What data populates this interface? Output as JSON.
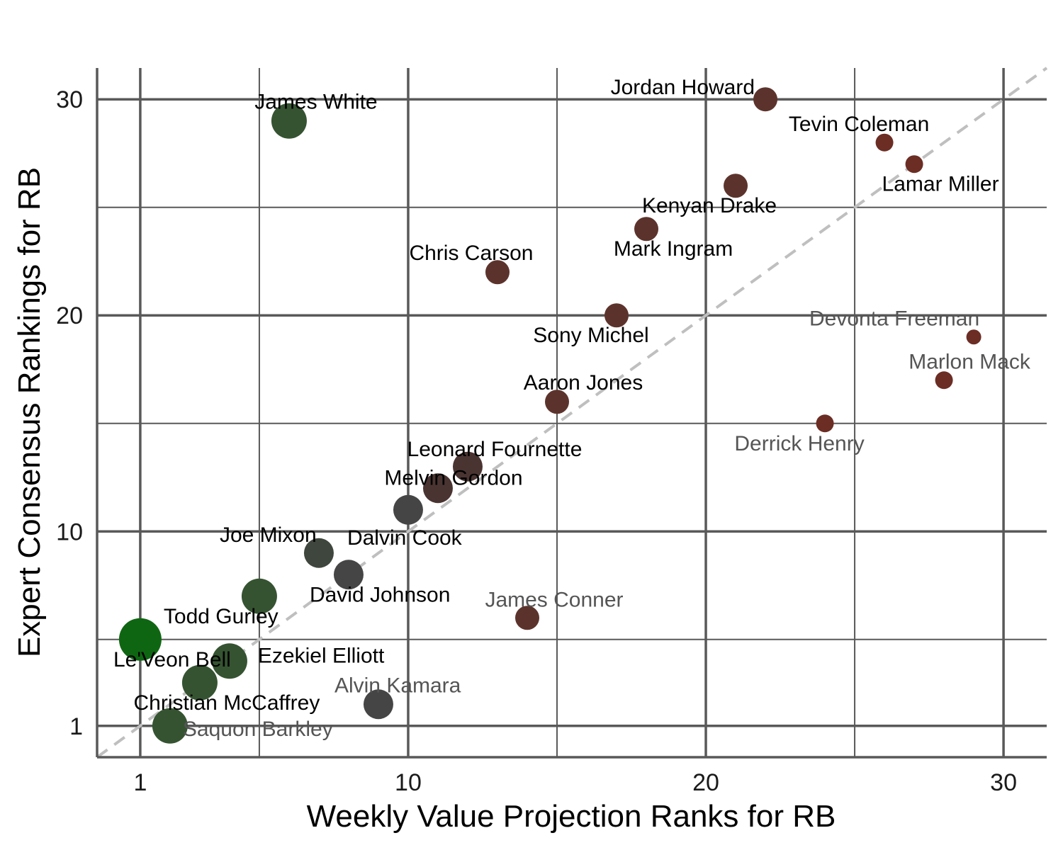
{
  "chart_data": {
    "type": "scatter",
    "title": "",
    "xlabel": "Weekly Value Projection Ranks for RB",
    "ylabel": "Expert Consensus Rankings for RB",
    "xlim": [
      -0.45,
      31.45
    ],
    "ylim": [
      -0.45,
      31.45
    ],
    "x_ticks": [
      1,
      10,
      20,
      30
    ],
    "y_ticks": [
      1,
      10,
      20,
      30
    ],
    "x_minor": [
      5,
      15,
      25
    ],
    "y_minor": [
      5,
      15,
      25
    ],
    "x_tick_labels": [
      "1",
      "10",
      "20",
      "30"
    ],
    "y_tick_labels": [
      "1",
      "10",
      "20",
      "30"
    ],
    "grid": true,
    "reference_line": "y = x (dashed)",
    "legend": "none",
    "colors": {
      "strong_green": "#0f6612",
      "green": "#355331",
      "dark_green_grey": "#3f463d",
      "grey": "#454545",
      "dark_brown": "#4a3431",
      "brown": "#5c332c",
      "red_brown": "#6b2d24",
      "label_dark": "#000000",
      "label_muted": "#555555",
      "gridline": "#595959",
      "refline": "#bfbfbf"
    },
    "points": [
      {
        "label": "Saquon Barkley",
        "x": 2,
        "y": 1,
        "size": "large",
        "color": "#355331",
        "label_muted": true
      },
      {
        "label": "Christian McCaffrey",
        "x": 3,
        "y": 3,
        "size": "large",
        "color": "#355331",
        "label_muted": false
      },
      {
        "label": "Le'Veon Bell",
        "x": 1,
        "y": 5,
        "size": "xlarge",
        "color": "#0f6612",
        "label_muted": false
      },
      {
        "label": "Ezekiel Elliott",
        "x": 4,
        "y": 4,
        "size": "large",
        "color": "#355331",
        "label_muted": false
      },
      {
        "label": "Todd Gurley",
        "x": 5,
        "y": 7,
        "size": "large",
        "color": "#355331",
        "label_muted": false
      },
      {
        "label": "Alvin Kamara",
        "x": 9,
        "y": 2,
        "size": "medium",
        "color": "#454545",
        "label_muted": true
      },
      {
        "label": "Joe Mixon",
        "x": 7,
        "y": 9,
        "size": "medium",
        "color": "#3f463d",
        "label_muted": false
      },
      {
        "label": "David Johnson",
        "x": 8,
        "y": 8,
        "size": "medium",
        "color": "#454545",
        "label_muted": false
      },
      {
        "label": "Dalvin Cook",
        "x": 10,
        "y": 11,
        "size": "medium",
        "color": "#454545",
        "label_muted": false
      },
      {
        "label": "Melvin Gordon",
        "x": 11,
        "y": 12,
        "size": "medium",
        "color": "#4a3431",
        "label_muted": false
      },
      {
        "label": "Leonard Fournette",
        "x": 12,
        "y": 13,
        "size": "medium",
        "color": "#4a3431",
        "label_muted": false
      },
      {
        "label": "James White",
        "x": 6,
        "y": 29,
        "size": "large",
        "color": "#355331",
        "label_muted": false
      },
      {
        "label": "James Conner",
        "x": 14,
        "y": 6,
        "size": "small",
        "color": "#5c332c",
        "label_muted": true
      },
      {
        "label": "Aaron Jones",
        "x": 15,
        "y": 16,
        "size": "small",
        "color": "#5c332c",
        "label_muted": false
      },
      {
        "label": "Chris Carson",
        "x": 13,
        "y": 22,
        "size": "small",
        "color": "#5c332c",
        "label_muted": false
      },
      {
        "label": "Sony Michel",
        "x": 17,
        "y": 20,
        "size": "small",
        "color": "#5c332c",
        "label_muted": false
      },
      {
        "label": "Mark Ingram",
        "x": 18,
        "y": 24,
        "size": "small",
        "color": "#5c332c",
        "label_muted": false
      },
      {
        "label": "Kenyan Drake",
        "x": 21,
        "y": 26,
        "size": "small",
        "color": "#5c332c",
        "label_muted": false
      },
      {
        "label": "Jordan Howard",
        "x": 22,
        "y": 30,
        "size": "small",
        "color": "#5c332c",
        "label_muted": false
      },
      {
        "label": "Derrick Henry",
        "x": 24,
        "y": 15,
        "size": "xsmall",
        "color": "#6b2d24",
        "label_muted": true
      },
      {
        "label": "Tevin Coleman",
        "x": 26,
        "y": 28,
        "size": "xsmall",
        "color": "#6b2d24",
        "label_muted": false
      },
      {
        "label": "Lamar Miller",
        "x": 27,
        "y": 27,
        "size": "xsmall",
        "color": "#6b2d24",
        "label_muted": false
      },
      {
        "label": "Marlon Mack",
        "x": 28,
        "y": 17,
        "size": "xsmall",
        "color": "#6b2d24",
        "label_muted": true
      },
      {
        "label": "Devonta Freeman",
        "x": 29,
        "y": 19,
        "size": "xxsmall",
        "color": "#6b2d24",
        "label_muted": true
      }
    ]
  }
}
